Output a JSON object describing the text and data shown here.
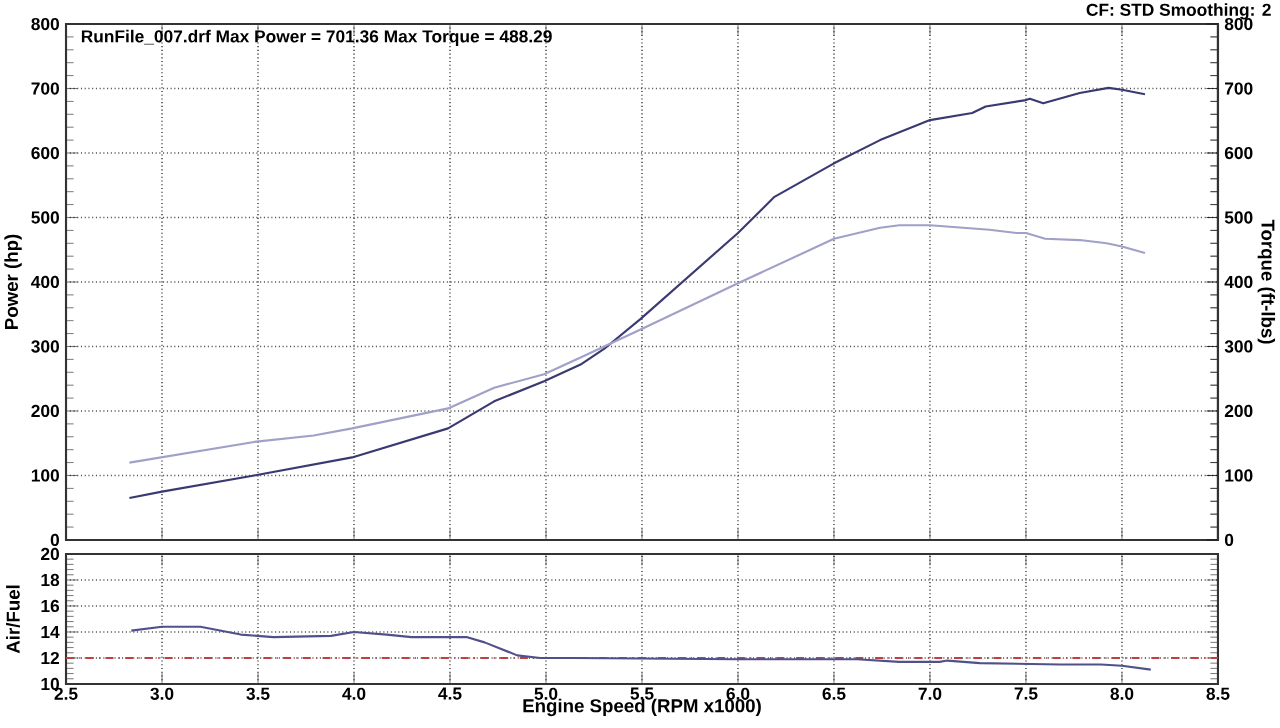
{
  "chart_data": [
    {
      "type": "line",
      "ylabel": "Power (hp)",
      "y2label": "Torque (ft-lbs)",
      "annotations": [
        "RunFile_007.drf Max Power = 701.36     Max Torque = 488.29",
        "CF: STD  Smoothing: 2"
      ],
      "xlim": [
        2.5,
        8.5
      ],
      "xticks": [
        2.5,
        3.0,
        3.5,
        4.0,
        4.5,
        5.0,
        5.5,
        6.0,
        6.5,
        7.0,
        7.5,
        8.0,
        8.5
      ],
      "ylim": [
        0,
        800
      ],
      "yticks": [
        0,
        100,
        200,
        300,
        400,
        500,
        600,
        700,
        800
      ],
      "y2lim": [
        0,
        800
      ],
      "y2ticks": [
        0,
        100,
        200,
        300,
        400,
        500,
        600,
        700,
        800
      ],
      "tick_labels": "y",
      "grid": true,
      "marker": "none",
      "series": [
        {
          "color": "#3a3a72",
          "x": [
            2.83,
            3.0,
            3.48,
            3.99,
            4.49,
            4.73,
            4.99,
            5.18,
            5.31,
            5.49,
            6.0,
            6.19,
            6.5,
            6.74,
            7.0,
            7.22,
            7.29,
            7.5,
            7.52,
            7.59,
            7.78,
            7.93,
            8.0,
            8.12
          ],
          "values": [
            65,
            75,
            100,
            128,
            173,
            215,
            246,
            272,
            298,
            342,
            476,
            532,
            584,
            620,
            651,
            662,
            672,
            682,
            684,
            677,
            693,
            701,
            698,
            691
          ]
        },
        {
          "color": "#a0a0c8",
          "axis": "y2",
          "x": [
            2.83,
            3.48,
            3.79,
            3.99,
            4.49,
            4.73,
            4.99,
            5.18,
            5.49,
            6.0,
            6.5,
            6.74,
            6.84,
            7.0,
            7.31,
            7.45,
            7.5,
            7.6,
            7.78,
            7.92,
            8.0,
            8.12
          ],
          "values": [
            120,
            152,
            162,
            173,
            204,
            236,
            257,
            283,
            326,
            398,
            467,
            484,
            488,
            488,
            481,
            476,
            476,
            467,
            465,
            460,
            455,
            445
          ]
        }
      ]
    },
    {
      "type": "line",
      "xlabel": "Engine Speed (RPM x1000)",
      "ylabel": "Air/Fuel",
      "xlim": [
        2.5,
        8.5
      ],
      "xticks": [
        2.5,
        {
          "value": 3,
          "label": "3.0"
        },
        3.5,
        {
          "value": 4,
          "label": "4.0"
        },
        4.5,
        {
          "value": 5,
          "label": "5.0"
        },
        5.5,
        {
          "value": 6,
          "label": "6.0"
        },
        6.5,
        {
          "value": 7,
          "label": "7.0"
        },
        7.5,
        {
          "value": 8,
          "label": "8.0"
        },
        8.5
      ],
      "ylim": [
        10,
        20
      ],
      "yticks": [
        10,
        12,
        14,
        16,
        18,
        20
      ],
      "grid": true,
      "marker": "none",
      "ref_lines": [
        {
          "axis": "y",
          "value": 12,
          "color": "#c04040",
          "line_style": "dashdot"
        }
      ],
      "series": [
        {
          "color": "#50508a",
          "x": [
            2.84,
            3.0,
            3.2,
            3.41,
            3.58,
            3.88,
            4.0,
            4.17,
            4.3,
            4.59,
            4.68,
            4.85,
            4.97,
            5.14,
            5.99,
            6.41,
            6.62,
            6.84,
            7.05,
            7.09,
            7.26,
            7.68,
            7.89,
            8.0,
            8.15
          ],
          "values": [
            14.1,
            14.4,
            14.4,
            13.8,
            13.6,
            13.7,
            14.0,
            13.8,
            13.6,
            13.6,
            13.2,
            12.2,
            12.0,
            12.0,
            11.9,
            11.9,
            11.9,
            11.7,
            11.7,
            11.8,
            11.6,
            11.5,
            11.5,
            11.4,
            11.1
          ]
        }
      ]
    }
  ]
}
